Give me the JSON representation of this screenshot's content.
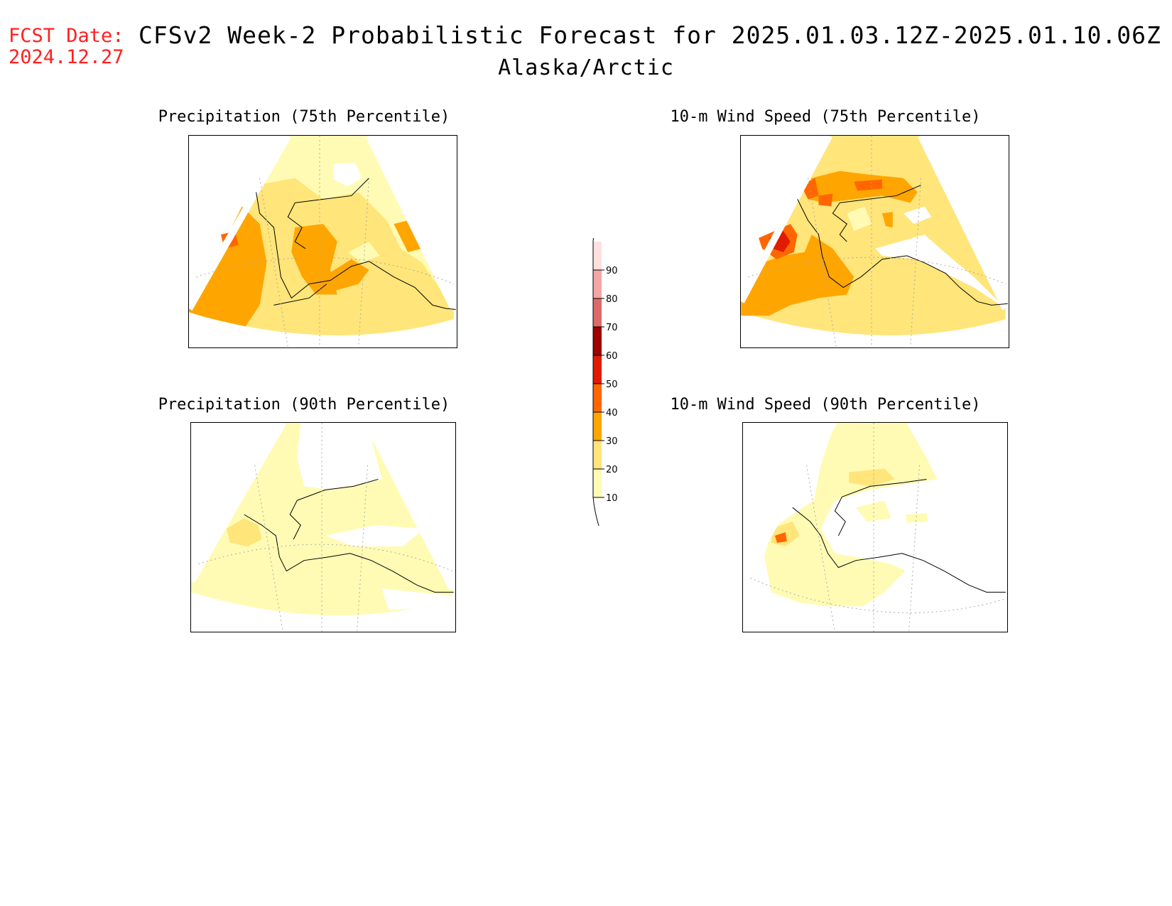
{
  "header": {
    "fcst_label": "FCST Date:",
    "fcst_date": "2024.12.27",
    "title": "CFSv2 Week-2 Probabilistic Forecast for 2025.01.03.12Z-2025.01.10.06Z",
    "subtitle": "Alaska/Arctic"
  },
  "panels": [
    {
      "id": "precip75",
      "title": "Precipitation (75th Percentile)"
    },
    {
      "id": "wind75",
      "title": "10-m Wind Speed (75th Percentile)"
    },
    {
      "id": "precip90",
      "title": "Precipitation (90th Percentile)"
    },
    {
      "id": "wind90",
      "title": "10-m Wind Speed (90th Percentile)"
    }
  ],
  "legend": {
    "levels": [
      "10",
      "20",
      "30",
      "40",
      "50",
      "60",
      "70",
      "80",
      "90"
    ],
    "colors": [
      "#fffbb4",
      "#ffe57a",
      "#ffa500",
      "#ff6600",
      "#e01b00",
      "#a00000",
      "#dd6a6a",
      "#f4a6a6",
      "#ffe0e0"
    ]
  },
  "colors": {
    "c10": "#fffbb4",
    "c20": "#ffe57a",
    "c30": "#ffa500",
    "c40": "#ff6600",
    "c50": "#e01b00",
    "fcst_text": "#ff2020"
  }
}
